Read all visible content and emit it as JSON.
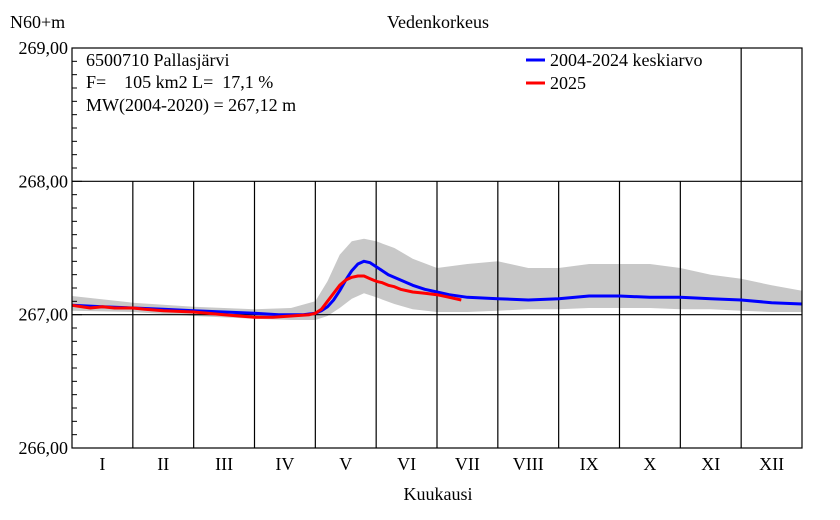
{
  "chart_data": {
    "type": "line",
    "title": "Vedenkorkeus",
    "ylabel": "N60+m",
    "xlabel": "Kuukausi",
    "ylim": [
      266,
      269
    ],
    "xlim": [
      0,
      12
    ],
    "grid": true,
    "yticks": [
      {
        "value": 266,
        "label": "266,00"
      },
      {
        "value": 267,
        "label": "267,00"
      },
      {
        "value": 268,
        "label": "268,00"
      },
      {
        "value": 269,
        "label": "269,00"
      }
    ],
    "months": [
      "I",
      "II",
      "III",
      "IV",
      "V",
      "VI",
      "VII",
      "VIII",
      "IX",
      "X",
      "XI",
      "XII"
    ],
    "info": [
      "6500710 Pallasjärvi",
      "F=    105 km2 L=  17,1 %",
      "MW(2004-2020) = 267,12 m"
    ],
    "legend_position": "top-right",
    "series": [
      {
        "name": "2004-2024 keskiarvo",
        "color": "#0000ff",
        "x": [
          0,
          0.5,
          1,
          1.5,
          2,
          2.5,
          3,
          3.4,
          3.8,
          4,
          4.1,
          4.2,
          4.3,
          4.4,
          4.5,
          4.6,
          4.7,
          4.8,
          4.9,
          5.0,
          5.1,
          5.2,
          5.4,
          5.6,
          5.8,
          6,
          6.2,
          6.5,
          7,
          7.5,
          8,
          8.5,
          9,
          9.5,
          10,
          10.5,
          11,
          11.5,
          12
        ],
        "y": [
          267.07,
          267.06,
          267.05,
          267.04,
          267.03,
          267.02,
          267.01,
          267.0,
          267.0,
          267.01,
          267.03,
          267.06,
          267.11,
          267.18,
          267.26,
          267.33,
          267.38,
          267.4,
          267.39,
          267.36,
          267.33,
          267.3,
          267.26,
          267.22,
          267.19,
          267.17,
          267.15,
          267.13,
          267.12,
          267.11,
          267.12,
          267.14,
          267.14,
          267.13,
          267.13,
          267.12,
          267.11,
          267.09,
          267.08
        ]
      },
      {
        "name": "2025",
        "color": "#ff0000",
        "x": [
          0,
          0.3,
          0.5,
          0.7,
          1.0,
          1.2,
          1.5,
          2.0,
          2.5,
          3.0,
          3.3,
          3.6,
          3.9,
          4.0,
          4.1,
          4.2,
          4.3,
          4.4,
          4.5,
          4.6,
          4.7,
          4.8,
          4.9,
          5.0,
          5.1,
          5.2,
          5.3,
          5.4,
          5.6,
          5.8,
          6.0,
          6.2,
          6.4
        ],
        "y": [
          267.07,
          267.05,
          267.06,
          267.05,
          267.05,
          267.04,
          267.03,
          267.02,
          267.0,
          266.98,
          266.98,
          266.99,
          267.0,
          267.01,
          267.04,
          267.1,
          267.16,
          267.22,
          267.26,
          267.28,
          267.29,
          267.29,
          267.27,
          267.25,
          267.24,
          267.22,
          267.21,
          267.19,
          267.17,
          267.16,
          267.15,
          267.13,
          267.11
        ]
      }
    ],
    "band": {
      "name": "range",
      "color": "#c8c8c8",
      "x": [
        0,
        1,
        2,
        3,
        3.6,
        4.0,
        4.2,
        4.4,
        4.6,
        4.8,
        5.0,
        5.3,
        5.6,
        6.0,
        6.5,
        7.0,
        7.5,
        8.0,
        8.5,
        9.0,
        9.5,
        10.0,
        10.5,
        11.0,
        11.5,
        12.0
      ],
      "y_upper": [
        267.14,
        267.09,
        267.06,
        267.04,
        267.05,
        267.1,
        267.25,
        267.45,
        267.55,
        267.57,
        267.55,
        267.5,
        267.42,
        267.35,
        267.38,
        267.4,
        267.35,
        267.35,
        267.38,
        267.38,
        267.38,
        267.35,
        267.3,
        267.27,
        267.22,
        267.18
      ],
      "y_lower": [
        267.03,
        267.02,
        266.99,
        266.97,
        266.96,
        266.96,
        266.99,
        267.05,
        267.12,
        267.16,
        267.13,
        267.08,
        267.04,
        267.02,
        267.02,
        267.03,
        267.04,
        267.04,
        267.05,
        267.05,
        267.05,
        267.04,
        267.04,
        267.03,
        267.02,
        267.02
      ]
    }
  }
}
